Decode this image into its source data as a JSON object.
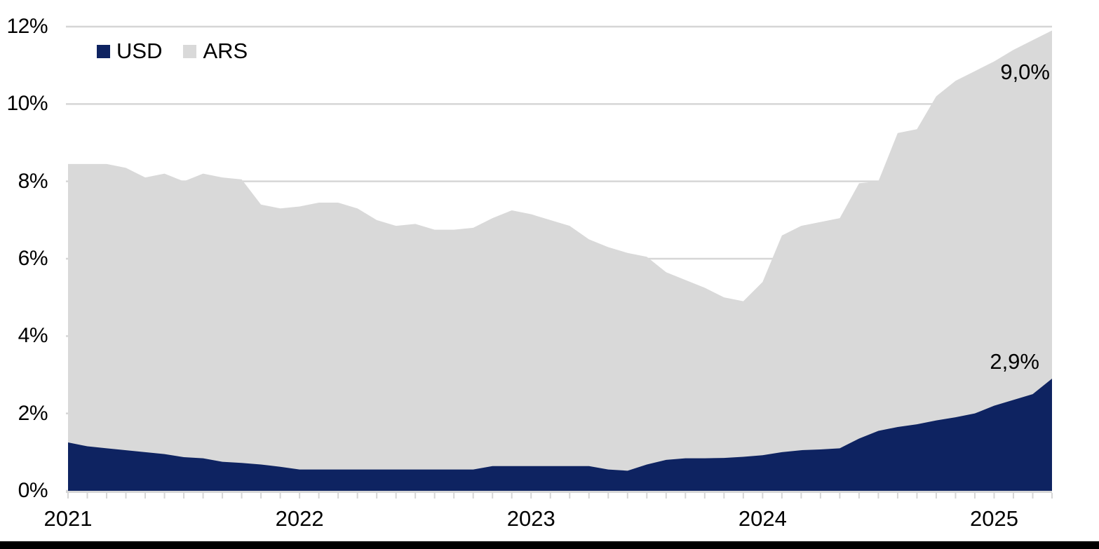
{
  "chart_data": {
    "type": "area",
    "stacked": true,
    "title": "",
    "x_axis": {
      "tick_interval": "monthly",
      "year_labels": [
        "2021",
        "2022",
        "2023",
        "2024",
        "2025"
      ],
      "months": [
        "2021-01",
        "2021-02",
        "2021-03",
        "2021-04",
        "2021-05",
        "2021-06",
        "2021-07",
        "2021-08",
        "2021-09",
        "2021-10",
        "2021-11",
        "2021-12",
        "2022-01",
        "2022-02",
        "2022-03",
        "2022-04",
        "2022-05",
        "2022-06",
        "2022-07",
        "2022-08",
        "2022-09",
        "2022-10",
        "2022-11",
        "2022-12",
        "2023-01",
        "2023-02",
        "2023-03",
        "2023-04",
        "2023-05",
        "2023-06",
        "2023-07",
        "2023-08",
        "2023-09",
        "2023-10",
        "2023-11",
        "2023-12",
        "2024-01",
        "2024-02",
        "2024-03",
        "2024-04",
        "2024-05",
        "2024-06",
        "2024-07",
        "2024-08",
        "2024-09",
        "2024-10",
        "2024-11",
        "2024-12",
        "2025-01",
        "2025-02",
        "2025-03",
        "2025-04"
      ]
    },
    "y_axis": {
      "min": 0,
      "max": 12,
      "step": 2,
      "tick_labels": [
        "0%",
        "2%",
        "4%",
        "6%",
        "8%",
        "10%",
        "12%"
      ],
      "grid": true
    },
    "legend": {
      "position": "top-left",
      "items": [
        {
          "label": "USD",
          "color": "#0e2361"
        },
        {
          "label": "ARS",
          "color": "#d9d9d9"
        }
      ]
    },
    "series": [
      {
        "name": "USD",
        "color": "#0e2361",
        "values": [
          1.25,
          1.15,
          1.1,
          1.05,
          1.0,
          0.95,
          0.87,
          0.84,
          0.75,
          0.72,
          0.68,
          0.62,
          0.55,
          0.55,
          0.55,
          0.55,
          0.55,
          0.55,
          0.55,
          0.55,
          0.55,
          0.55,
          0.64,
          0.64,
          0.64,
          0.64,
          0.64,
          0.64,
          0.55,
          0.52,
          0.68,
          0.8,
          0.84,
          0.84,
          0.85,
          0.88,
          0.92,
          1.0,
          1.05,
          1.07,
          1.1,
          1.35,
          1.55,
          1.65,
          1.72,
          1.82,
          1.9,
          2.0,
          2.2,
          2.35,
          2.5,
          2.9
        ]
      },
      {
        "name": "ARS",
        "color": "#d9d9d9",
        "values": [
          7.2,
          7.3,
          7.35,
          7.3,
          7.1,
          7.25,
          7.13,
          7.36,
          7.35,
          7.33,
          6.72,
          6.68,
          6.8,
          6.9,
          6.9,
          6.75,
          6.45,
          6.3,
          6.35,
          6.2,
          6.2,
          6.25,
          6.41,
          6.61,
          6.51,
          6.36,
          6.21,
          5.86,
          5.75,
          5.63,
          5.37,
          4.85,
          4.61,
          4.41,
          4.15,
          4.02,
          4.48,
          5.6,
          5.8,
          5.88,
          5.95,
          6.6,
          6.45,
          7.6,
          7.63,
          8.38,
          8.7,
          8.85,
          8.9,
          9.05,
          9.15,
          9.0
        ]
      }
    ],
    "end_labels": [
      {
        "series": "ARS",
        "text": "9,0%",
        "value": 9.0
      },
      {
        "series": "USD",
        "text": "2,9%",
        "value": 2.9
      }
    ],
    "colors": {
      "grid": "#d6d6d6",
      "axis": "#d6d6d6",
      "tick": "#d6d6d6",
      "text": "#000000",
      "background": "#ffffff",
      "bottom_bar": "#000000"
    }
  }
}
